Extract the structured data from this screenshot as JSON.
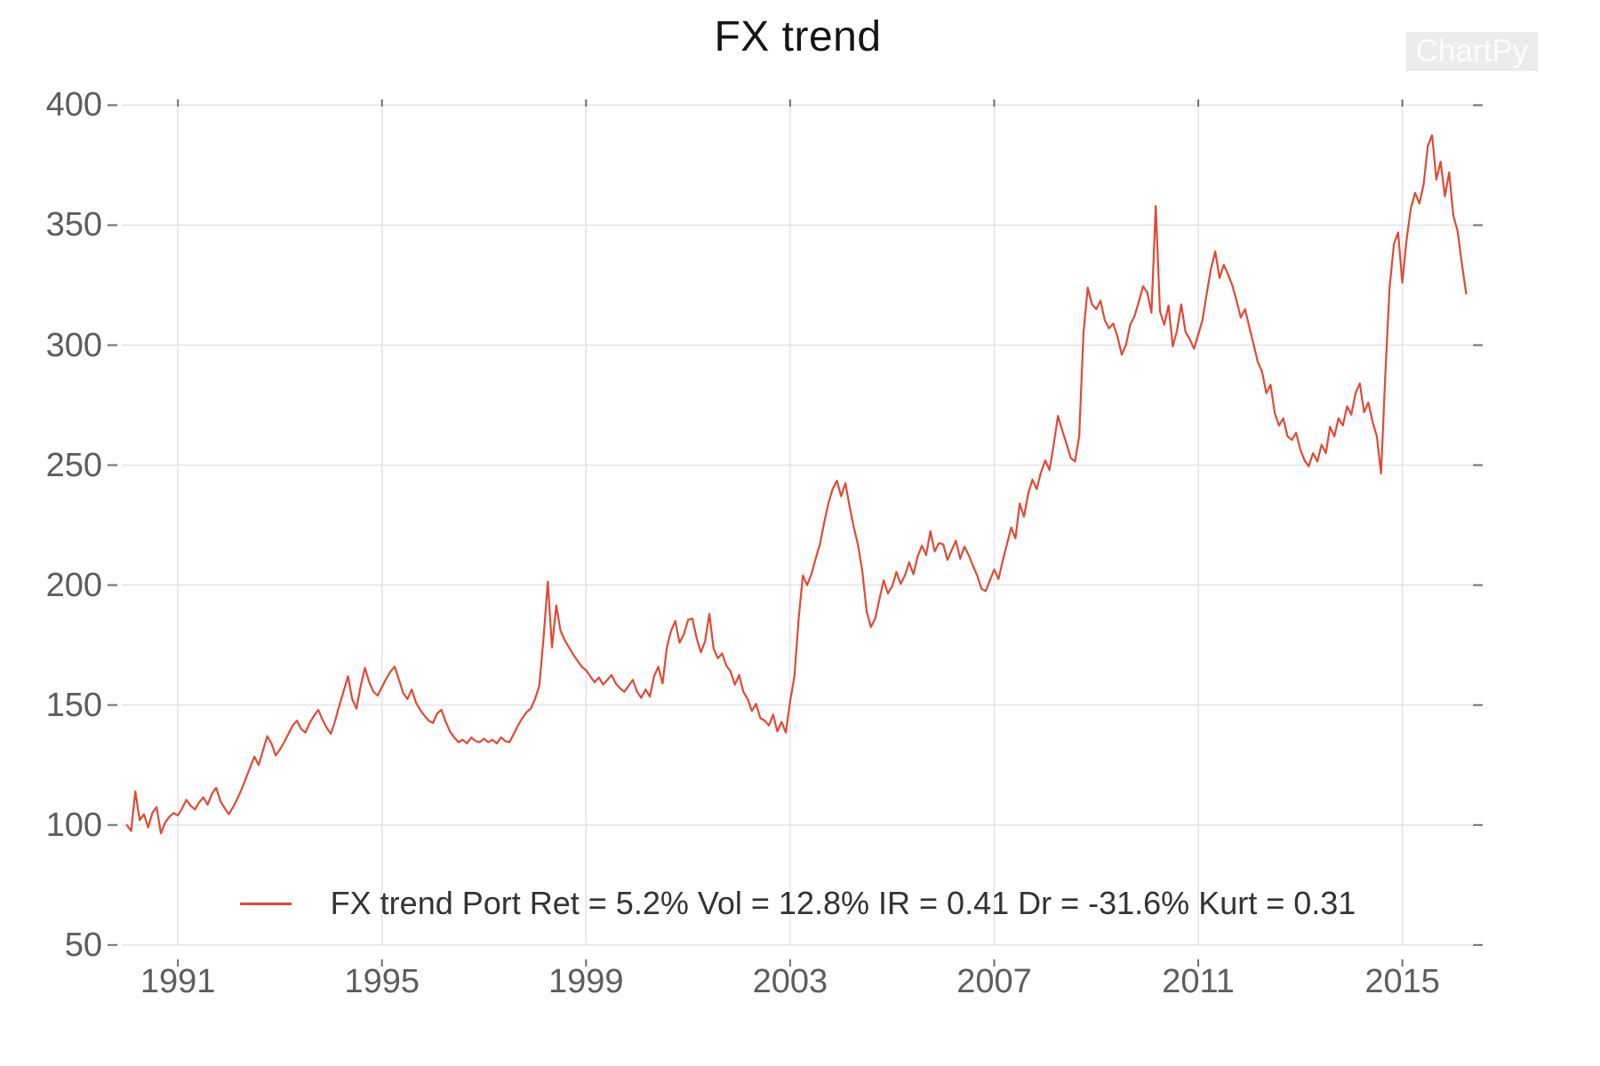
{
  "title": "FX trend",
  "watermark": "ChartPy",
  "legend": {
    "label": "FX trend Port Ret = 5.2% Vol = 12.8% IR = 0.41 Dr = -31.6% Kurt = 0.31"
  },
  "colors": {
    "background": "#ffffff",
    "line": "#e04a36",
    "grid": "#e4e4e4",
    "tick": "#6e6e6e",
    "axis_label": "#5d5d5d",
    "title": "#151515",
    "legend_text": "#333333",
    "watermark_bg": "#ececec",
    "watermark_text": "#fcfcfc"
  },
  "chart_data": {
    "type": "line",
    "title": "FX trend",
    "xlabel": "",
    "ylabel": "",
    "grid": true,
    "legend_position": "bottom-center-inside",
    "xlim": [
      1989.9,
      2016.4
    ],
    "ylim": [
      44,
      402
    ],
    "x_ticks": [
      1991,
      1995,
      1999,
      2003,
      2007,
      2011,
      2015
    ],
    "y_ticks": [
      400,
      350,
      300,
      250,
      200,
      150,
      100,
      50
    ],
    "series": [
      {
        "name": "FX trend Port Ret = 5.2% Vol = 12.8% IR = 0.41 Dr = -31.6% Kurt = 0.31",
        "color": "#e04a36",
        "start_year": 1990,
        "points_per_year": 12,
        "values": [
          100,
          97.5,
          114,
          102,
          104.5,
          99,
          105,
          107.5,
          96.5,
          101,
          103.5,
          105,
          104,
          107,
          110.5,
          108,
          106.5,
          109.5,
          111.5,
          108.5,
          113,
          115.5,
          110,
          107,
          104.5,
          107.5,
          111,
          115,
          119.5,
          124,
          128.5,
          125,
          131,
          137,
          134,
          129,
          131.5,
          134.5,
          138,
          141.5,
          143.5,
          140,
          138.5,
          142.5,
          145.5,
          148,
          144,
          140.5,
          138,
          143.5,
          150,
          156,
          162,
          152.5,
          148.5,
          158,
          165.5,
          159.5,
          155.5,
          154,
          157.5,
          161,
          164,
          166,
          160.5,
          155,
          152.5,
          156.5,
          151,
          148,
          145.5,
          143.5,
          142.5,
          146.5,
          148,
          143,
          139,
          136.5,
          134.5,
          135.5,
          134,
          136.5,
          135,
          134.5,
          136,
          134.5,
          135.5,
          134,
          136.5,
          135,
          134.5,
          138,
          141.5,
          144.5,
          147,
          148.5,
          152.5,
          158,
          178,
          201.5,
          174,
          191.5,
          181,
          177,
          174,
          171,
          168.5,
          166,
          164.5,
          162,
          159.5,
          161.5,
          158.5,
          160.5,
          162.5,
          159,
          157,
          155.5,
          158,
          160.5,
          155.5,
          153,
          156.5,
          153.5,
          162,
          166,
          159,
          174,
          181,
          185,
          176,
          179.5,
          185.5,
          186,
          178,
          172,
          176.5,
          188,
          173.5,
          169.5,
          171.5,
          166.5,
          164,
          158.5,
          162.5,
          155.5,
          152.5,
          147.5,
          150.5,
          144.5,
          143.5,
          141.5,
          146,
          139,
          143,
          138.5,
          151.5,
          162,
          186,
          204,
          200,
          204.5,
          211,
          217,
          226,
          234,
          240,
          243.5,
          237,
          242.5,
          232.5,
          224,
          216.5,
          205.5,
          189,
          182.5,
          186,
          194,
          202,
          196.5,
          199.5,
          205.5,
          200.5,
          204,
          209.5,
          204.5,
          212,
          216.5,
          212.5,
          222.5,
          214,
          217.5,
          217,
          210.5,
          214.5,
          218.5,
          211,
          216,
          212.5,
          208,
          204,
          198.5,
          197.5,
          202,
          206.5,
          202.5,
          210,
          217,
          224,
          219.5,
          234,
          228.5,
          238,
          244,
          240,
          247,
          252,
          248,
          258.5,
          270.5,
          264.5,
          259,
          253,
          251.5,
          262,
          305,
          324,
          317,
          315,
          318.5,
          310.5,
          307,
          309,
          303.5,
          296,
          300,
          308.5,
          312,
          318,
          324.5,
          322,
          313.5,
          358,
          314,
          308.5,
          316.5,
          299.5,
          306,
          317,
          305.5,
          302.5,
          298.5,
          304.5,
          310.5,
          321.5,
          332,
          339,
          328,
          333.5,
          329.5,
          325,
          318.5,
          311.5,
          315,
          307.5,
          300.5,
          293,
          289,
          280,
          283.5,
          271.5,
          266.5,
          269.5,
          262,
          260.5,
          263.5,
          256.5,
          252,
          249.5,
          255,
          251.5,
          258.5,
          255,
          266,
          262,
          269.5,
          266.5,
          274.5,
          271,
          280,
          284,
          272,
          276,
          268,
          262,
          246.5,
          288,
          324,
          342,
          347,
          326,
          344,
          357,
          363.5,
          359,
          367,
          383,
          387.5,
          369,
          376.5,
          362,
          372,
          354,
          347.5,
          334,
          321.5
        ]
      }
    ]
  }
}
